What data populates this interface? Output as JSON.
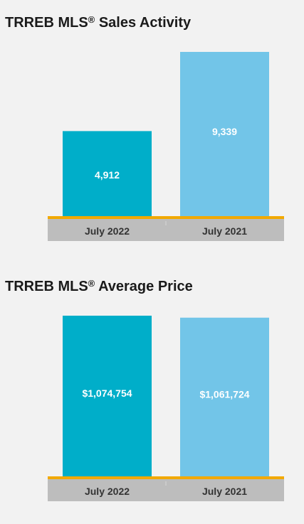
{
  "colors": {
    "background": "#f2f2f2",
    "bar_2022": "#00aec9",
    "bar_2021": "#72c5e8",
    "baseline": "#f2a900",
    "axis_band": "#bdbdbd",
    "title": "#1a1a1a",
    "bar_label": "#ffffff",
    "axis_text": "#333333"
  },
  "chart_data": [
    {
      "type": "bar",
      "title_main": "TRREB MLS",
      "title_reg": "®",
      "title_rest": " Sales Activity",
      "categories": [
        "July 2022",
        "July 2021"
      ],
      "values": [
        4912,
        9339
      ],
      "value_labels": [
        "4,912",
        "9,339"
      ],
      "ylim": [
        0,
        9339
      ],
      "grid": false,
      "legend": "none"
    },
    {
      "type": "bar",
      "title_main": "TRREB MLS",
      "title_reg": "®",
      "title_rest": " Average Price",
      "categories": [
        "July 2022",
        "July 2021"
      ],
      "values": [
        1074754,
        1061724
      ],
      "value_labels": [
        "$1,074,754",
        "$1,061,724"
      ],
      "ylim": [
        0,
        1074754
      ],
      "grid": false,
      "legend": "none"
    }
  ]
}
